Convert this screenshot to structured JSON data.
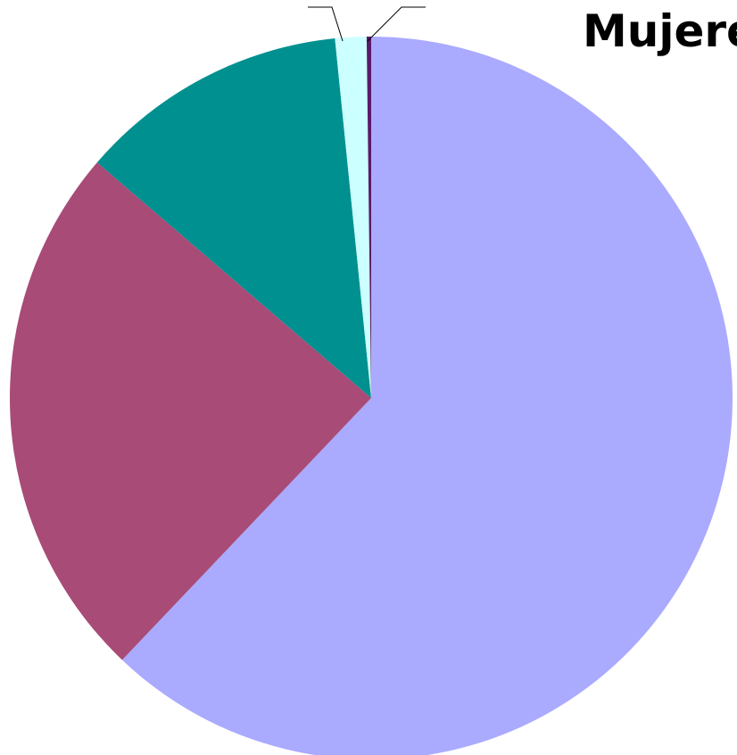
{
  "chart_data": {
    "type": "pie",
    "title": "Mujere",
    "categories": [
      null,
      null,
      null,
      null,
      null
    ],
    "values": [
      62.1,
      24.2,
      12.1,
      1.4,
      0.2
    ],
    "colors": [
      "#aaaaff",
      "#a84b76",
      "#009090",
      "#ccffff",
      "#5a1a6a"
    ],
    "start_angle": 0,
    "direction": "clockwise"
  }
}
